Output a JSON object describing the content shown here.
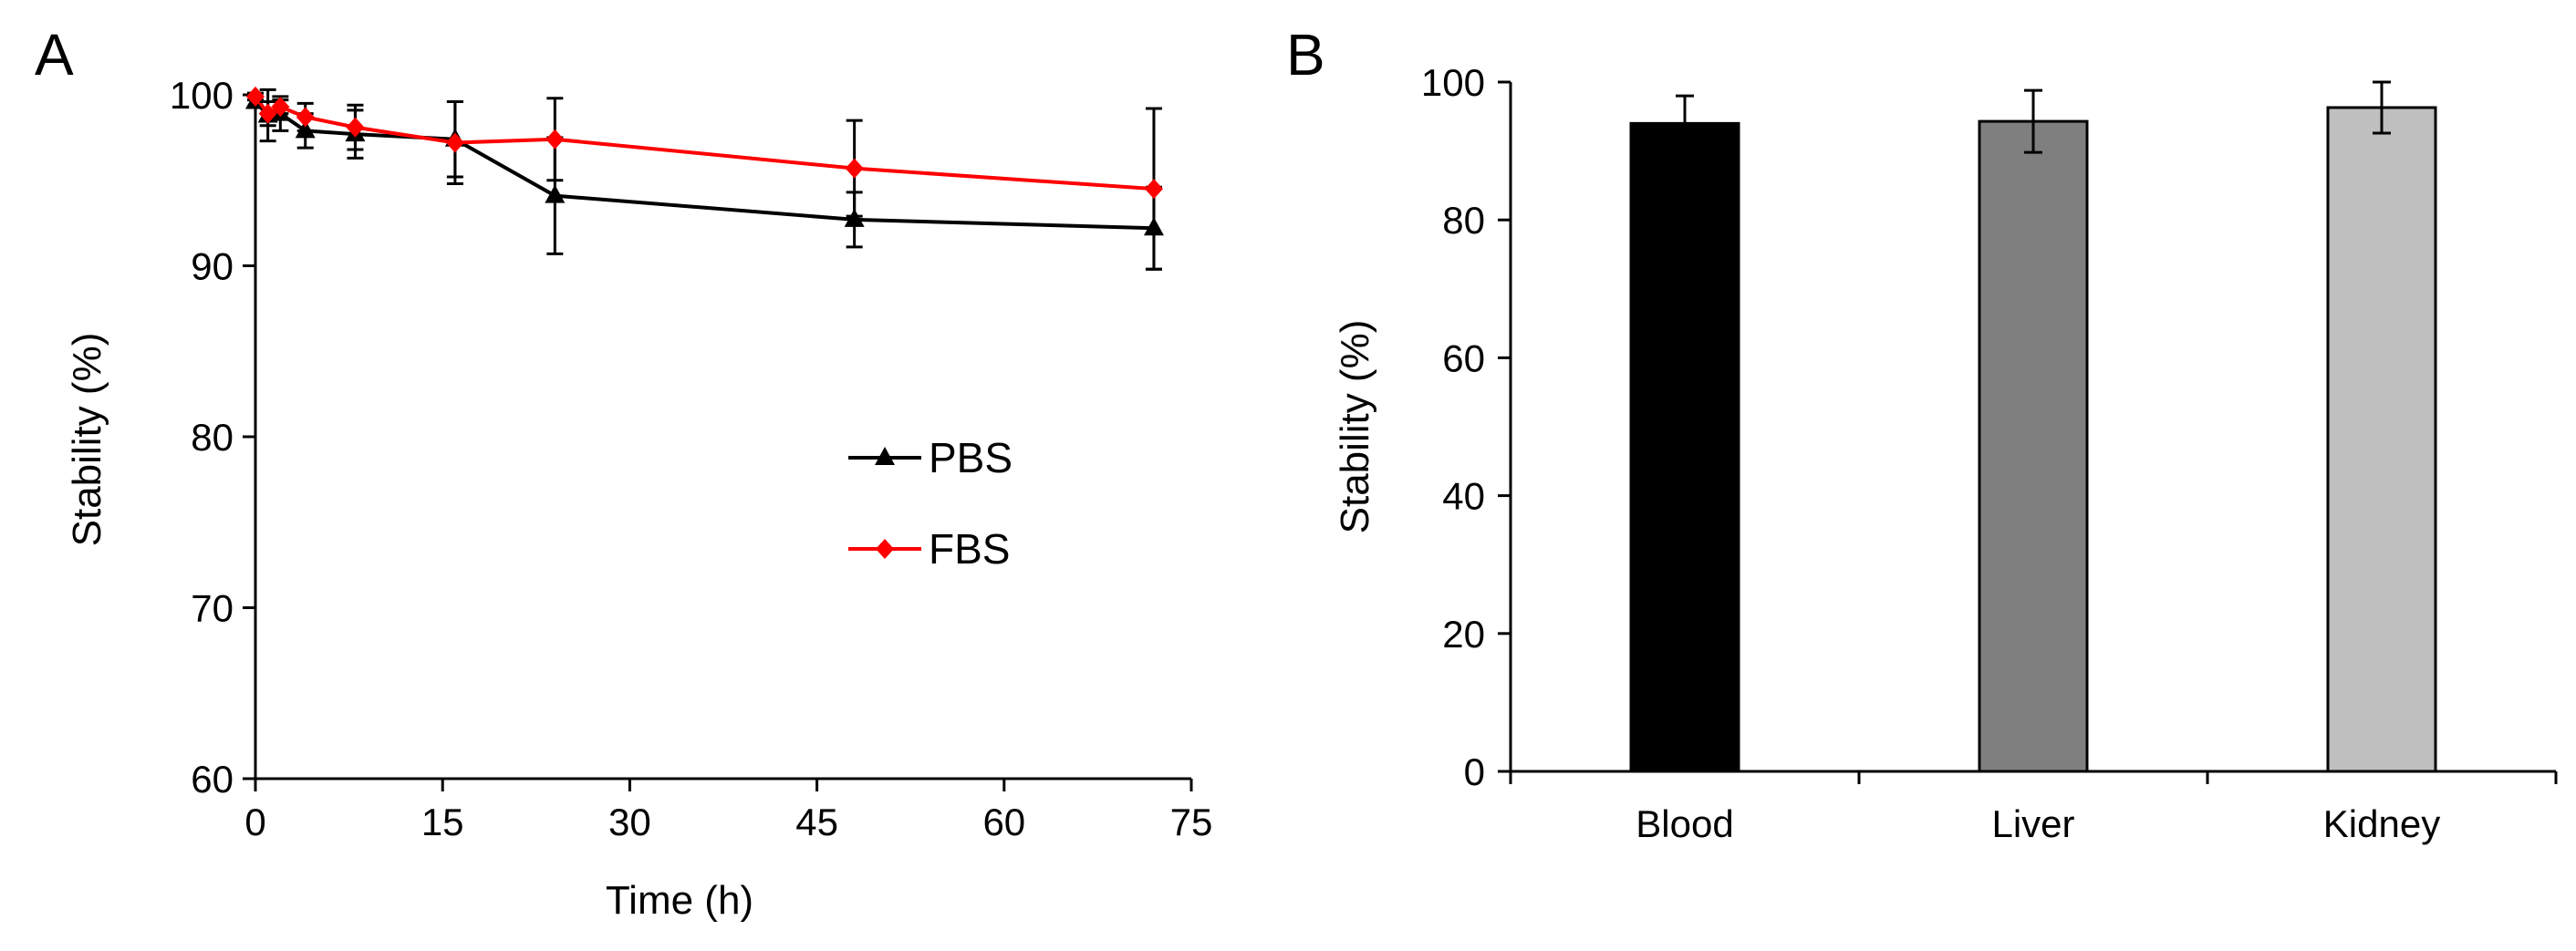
{
  "chart_data": [
    {
      "panel": "A",
      "type": "line",
      "xlabel": "Time (h)",
      "ylabel": "Stability (%)",
      "xlim": [
        0,
        75
      ],
      "ylim": [
        60,
        100
      ],
      "xticks": [
        0,
        15,
        30,
        45,
        60,
        75
      ],
      "yticks": [
        60,
        70,
        80,
        90,
        100
      ],
      "grid": false,
      "legend_position": "center-right",
      "x": [
        0,
        1,
        2,
        4,
        8,
        16,
        24,
        48,
        72
      ],
      "series": [
        {
          "name": "PBS",
          "color": "#000000",
          "marker": "triangle",
          "values": [
            99.6,
            98.8,
            98.9,
            97.9,
            97.7,
            97.4,
            94.1,
            92.7,
            92.2
          ],
          "errors": [
            0.3,
            1.5,
            1.0,
            1.0,
            1.4,
            2.2,
            3.4,
            1.6,
            2.4
          ]
        },
        {
          "name": "FBS",
          "color": "#ff0000",
          "marker": "diamond",
          "values": [
            99.9,
            98.9,
            99.3,
            98.7,
            98.1,
            97.2,
            97.4,
            95.7,
            94.5
          ],
          "errors": [
            0.2,
            0.7,
            0.4,
            0.8,
            1.3,
            2.4,
            2.4,
            2.8,
            4.7
          ]
        }
      ]
    },
    {
      "panel": "B",
      "type": "bar",
      "ylabel": "Stability (%)",
      "ylim": [
        0,
        100
      ],
      "yticks": [
        0,
        20,
        40,
        60,
        80,
        100
      ],
      "grid": false,
      "categories": [
        "Blood",
        "Liver",
        "Kidney"
      ],
      "values": [
        94,
        94.3,
        96.3
      ],
      "errors": [
        4.0,
        4.5,
        3.7
      ],
      "colors": [
        "#000000",
        "#7f7f7f",
        "#bfbfbf"
      ]
    }
  ]
}
